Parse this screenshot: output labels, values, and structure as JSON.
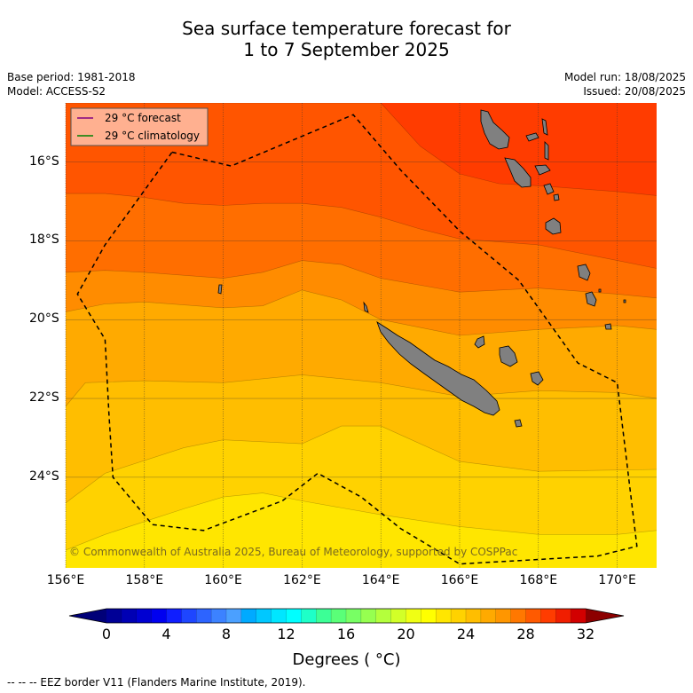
{
  "title_line1": "Sea surface temperature forecast for",
  "title_line2": "1 to 7 September 2025",
  "base_period": "Base period: 1981-2018",
  "model": "Model: ACCESS-S2",
  "model_run": "Model run: 18/08/2025",
  "issued": "Issued: 20/08/2025",
  "legend": {
    "forecast": "29 °C  forecast",
    "climatology": "29 °C  climatology"
  },
  "copyright": "© Commonwealth of Australia 2025, Bureau of Meteorology, supported by COSPPac",
  "colorbar_label": "Degrees ( °C)",
  "footer": "--  --  -- EEZ border V11 (Flanders Marine Institute, 2019).",
  "colors": {
    "forecast_line": "#800080",
    "climatology_line": "#008000",
    "land": "#808080"
  },
  "chart_data": {
    "type": "heatmap",
    "xlabel": "",
    "ylabel": "",
    "xlim": [
      156,
      171
    ],
    "ylim": [
      -26.3,
      -14.5
    ],
    "x_ticks": [
      "156°E",
      "158°E",
      "160°E",
      "162°E",
      "164°E",
      "166°E",
      "168°E",
      "170°E"
    ],
    "y_ticks": [
      "16°S",
      "18°S",
      "20°S",
      "22°S",
      "24°S"
    ],
    "colorbar": {
      "ticks": [
        "0",
        "4",
        "8",
        "12",
        "16",
        "20",
        "24",
        "28",
        "32"
      ],
      "min": 0,
      "max": 32,
      "step": 1,
      "colors": [
        "#000096",
        "#0000b4",
        "#0000d2",
        "#0000f0",
        "#0f1eff",
        "#1e46ff",
        "#2d64ff",
        "#3c82ff",
        "#4ba0ff",
        "#00aaff",
        "#00c8ff",
        "#00e6ff",
        "#00ffff",
        "#1effc8",
        "#3cff96",
        "#5aff78",
        "#78ff64",
        "#96ff50",
        "#b4ff3c",
        "#d2ff28",
        "#f0ff14",
        "#ffff00",
        "#ffe600",
        "#ffd200",
        "#ffbe00",
        "#ffaa00",
        "#ff9600",
        "#ff7800",
        "#ff5a00",
        "#ff3c00",
        "#f01e00",
        "#d20000"
      ],
      "extend_low_color": "#000078",
      "extend_high_color": "#8c0000"
    },
    "bands": [
      {
        "temp": 24.5,
        "color": "#ffe600"
      },
      {
        "temp": 25.5,
        "color": "#ffd200"
      },
      {
        "temp": 26.5,
        "color": "#ffbe00"
      },
      {
        "temp": 27.5,
        "color": "#ffaa00"
      },
      {
        "temp": 28.5,
        "color": "#ff8c00"
      },
      {
        "temp": 29.5,
        "color": "#ff6e00"
      },
      {
        "temp": 30.5,
        "color": "#ff5500"
      },
      {
        "temp": 31.5,
        "color": "#ff3c00"
      }
    ],
    "isotherms": [
      {
        "temp": 25,
        "points": [
          [
            156,
            -25.85
          ],
          [
            157,
            -25.45
          ],
          [
            159,
            -24.8
          ],
          [
            160,
            -24.5
          ],
          [
            161,
            -24.4
          ],
          [
            162,
            -24.6
          ],
          [
            164,
            -24.95
          ],
          [
            166,
            -25.25
          ],
          [
            168,
            -25.45
          ],
          [
            170,
            -25.45
          ],
          [
            171,
            -25.35
          ]
        ]
      },
      {
        "temp": 26,
        "points": [
          [
            156,
            -24.65
          ],
          [
            157,
            -23.9
          ],
          [
            159,
            -23.25
          ],
          [
            160,
            -23.05
          ],
          [
            162,
            -23.15
          ],
          [
            163,
            -22.7
          ],
          [
            164,
            -22.7
          ],
          [
            166,
            -23.6
          ],
          [
            168,
            -23.85
          ],
          [
            171,
            -23.8
          ]
        ]
      },
      {
        "temp": 27,
        "points": [
          [
            156,
            -22.2
          ],
          [
            156.5,
            -21.6
          ],
          [
            158,
            -21.55
          ],
          [
            160,
            -21.6
          ],
          [
            162,
            -21.4
          ],
          [
            164,
            -21.6
          ],
          [
            166,
            -21.95
          ],
          [
            168,
            -21.8
          ],
          [
            170,
            -21.85
          ],
          [
            171,
            -22.0
          ]
        ]
      },
      {
        "temp": 28,
        "points": [
          [
            156,
            -19.8
          ],
          [
            157,
            -19.6
          ],
          [
            158,
            -19.55
          ],
          [
            160,
            -19.7
          ],
          [
            161,
            -19.65
          ],
          [
            162,
            -19.25
          ],
          [
            163,
            -19.5
          ],
          [
            164,
            -20.0
          ],
          [
            166,
            -20.4
          ],
          [
            168,
            -20.25
          ],
          [
            170,
            -20.15
          ],
          [
            171,
            -20.25
          ]
        ]
      },
      {
        "temp": 29,
        "points": [
          [
            156,
            -18.8
          ],
          [
            157,
            -18.75
          ],
          [
            158,
            -18.8
          ],
          [
            160,
            -18.95
          ],
          [
            161,
            -18.8
          ],
          [
            162,
            -18.5
          ],
          [
            163,
            -18.6
          ],
          [
            164,
            -18.95
          ],
          [
            166,
            -19.3
          ],
          [
            168,
            -19.2
          ],
          [
            170,
            -19.35
          ],
          [
            171,
            -19.45
          ]
        ]
      },
      {
        "temp": 30,
        "points": [
          [
            156,
            -16.8
          ],
          [
            157,
            -16.8
          ],
          [
            158,
            -16.9
          ],
          [
            159,
            -17.05
          ],
          [
            160,
            -17.1
          ],
          [
            161,
            -17.05
          ],
          [
            162,
            -17.05
          ],
          [
            163,
            -17.15
          ],
          [
            164,
            -17.4
          ],
          [
            165,
            -17.7
          ],
          [
            166,
            -17.95
          ],
          [
            168,
            -18.1
          ],
          [
            170,
            -18.5
          ],
          [
            171,
            -18.7
          ]
        ]
      },
      {
        "temp": 31,
        "points": [
          [
            156,
            -14.5
          ],
          [
            164,
            -14.5
          ],
          [
            165,
            -15.6
          ],
          [
            166,
            -16.3
          ],
          [
            167,
            -16.55
          ],
          [
            168,
            -16.6
          ],
          [
            170,
            -16.75
          ],
          [
            171,
            -16.85
          ]
        ]
      }
    ],
    "eez_border": [
      [
        158.7,
        -15.75
      ],
      [
        160.2,
        -16.1
      ],
      [
        163.3,
        -14.8
      ],
      [
        164.5,
        -16.2
      ],
      [
        166.0,
        -17.75
      ],
      [
        167.5,
        -19.0
      ],
      [
        169.0,
        -21.1
      ],
      [
        170.0,
        -21.6
      ],
      [
        170.5,
        -25.75
      ],
      [
        169.5,
        -26.0
      ],
      [
        166.0,
        -26.2
      ],
      [
        164.5,
        -25.3
      ],
      [
        163.5,
        -24.5
      ],
      [
        162.4,
        -23.9
      ],
      [
        161.5,
        -24.6
      ],
      [
        159.5,
        -25.35
      ],
      [
        158.2,
        -25.2
      ],
      [
        157.2,
        -24.0
      ],
      [
        157.1,
        -22.4
      ],
      [
        157.0,
        -20.5
      ],
      [
        156.3,
        -19.35
      ],
      [
        157.0,
        -18.1
      ]
    ]
  }
}
